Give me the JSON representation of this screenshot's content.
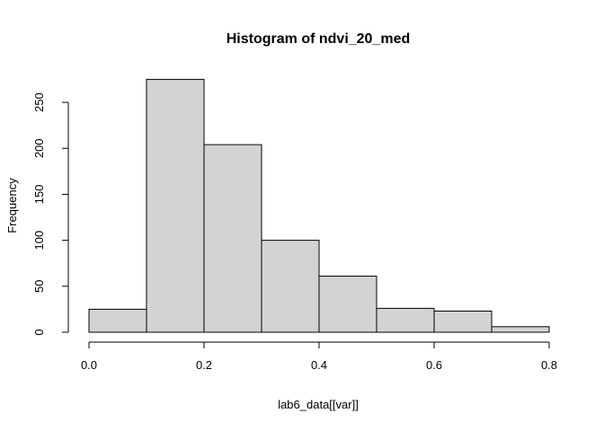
{
  "chart_data": {
    "type": "bar",
    "title": "Histogram of ndvi_20_med",
    "xlabel": "lab6_data[[var]]",
    "ylabel": "Frequency",
    "bins": [
      {
        "from": 0.0,
        "to": 0.1,
        "count": 25
      },
      {
        "from": 0.1,
        "to": 0.2,
        "count": 275
      },
      {
        "from": 0.2,
        "to": 0.3,
        "count": 204
      },
      {
        "from": 0.3,
        "to": 0.4,
        "count": 100
      },
      {
        "from": 0.4,
        "to": 0.5,
        "count": 61
      },
      {
        "from": 0.5,
        "to": 0.6,
        "count": 26
      },
      {
        "from": 0.6,
        "to": 0.7,
        "count": 23
      },
      {
        "from": 0.7,
        "to": 0.8,
        "count": 6
      }
    ],
    "x_ticks": [
      0.0,
      0.2,
      0.4,
      0.6,
      0.8
    ],
    "x_tick_labels": [
      "0.0",
      "0.2",
      "0.4",
      "0.6",
      "0.8"
    ],
    "y_ticks": [
      0,
      50,
      100,
      150,
      200,
      250
    ],
    "y_tick_labels": [
      "0",
      "50",
      "100",
      "150",
      "200",
      "250"
    ],
    "xlim": [
      0.0,
      0.8
    ],
    "ylim": [
      0,
      250
    ],
    "grid": false,
    "colors": {
      "bar_fill": "#d3d3d3",
      "bar_stroke": "#000000"
    }
  }
}
